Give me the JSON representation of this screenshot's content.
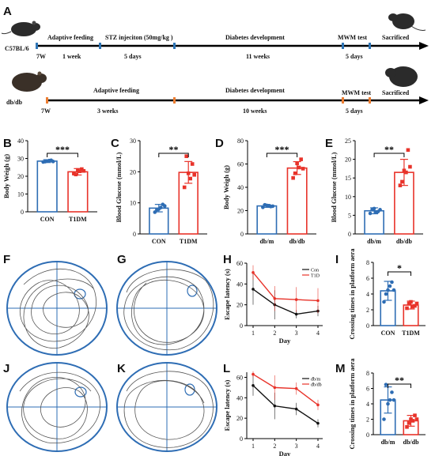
{
  "panels": {
    "A": {
      "letter": "A"
    },
    "B": {
      "letter": "B"
    },
    "C": {
      "letter": "C"
    },
    "D": {
      "letter": "D"
    },
    "E": {
      "letter": "E"
    },
    "F": {
      "letter": "F"
    },
    "G": {
      "letter": "G"
    },
    "H": {
      "letter": "H"
    },
    "I": {
      "letter": "I"
    },
    "J": {
      "letter": "J"
    },
    "K": {
      "letter": "K"
    },
    "L": {
      "letter": "L"
    },
    "M": {
      "letter": "M"
    }
  },
  "timeline": {
    "row1": {
      "strain": "C57BL/6",
      "week0": "7W",
      "steps": [
        "Adaptive feeding",
        "STZ injeciton (50mg/kg )",
        "Diabetes development",
        "MWM test",
        "Sacrificed"
      ],
      "durations": [
        "1 week",
        "5 days",
        "11 weeks",
        "5 days"
      ],
      "marker_color": "#2e75b6"
    },
    "row2": {
      "strain": "db/db",
      "week0": "7W",
      "steps": [
        "Adaptive feeding",
        "Diabetes development",
        "MWM test",
        "Sacrificed"
      ],
      "durations": [
        "3 weeks",
        "10 weeks",
        "5 days"
      ],
      "marker_color": "#ed7d31"
    }
  },
  "colors": {
    "blue": "#2e6db4",
    "red": "#e8332a",
    "black": "#111111"
  },
  "sig": {
    "B": "***",
    "C": "**",
    "D": "***",
    "E": "**",
    "I": "*",
    "M": "**"
  },
  "chart_data": [
    {
      "id": "B",
      "type": "bar",
      "categories": [
        "CON",
        "T1DM"
      ],
      "values": [
        28.5,
        22.5
      ],
      "errors": [
        0.8,
        1.8
      ],
      "points": [
        [
          28.0,
          28.5,
          29.0,
          28.2,
          28.8,
          28.3
        ],
        [
          21.5,
          23.5,
          24.0,
          21.0,
          22.8,
          23.0
        ]
      ],
      "ylabel": "Body Weigh (g)",
      "yticks": [
        0,
        10,
        20,
        30,
        40
      ],
      "ylim": [
        0,
        40
      ]
    },
    {
      "id": "C",
      "type": "bar",
      "categories": [
        "CON",
        "T1DM"
      ],
      "values": [
        8.3,
        19.8
      ],
      "errors": [
        1.2,
        3.5
      ],
      "points": [
        [
          7.0,
          8.0,
          9.5,
          7.8,
          8.5,
          9.0
        ],
        [
          15.0,
          19.5,
          22.5,
          25.0,
          17.8,
          19.0
        ]
      ],
      "ylabel": "Blood Glucose (mmol/L)",
      "yticks": [
        0,
        10,
        20,
        30
      ],
      "ylim": [
        0,
        30
      ]
    },
    {
      "id": "D",
      "type": "bar",
      "categories": [
        "db/m",
        "db/db"
      ],
      "values": [
        24.0,
        56.5
      ],
      "errors": [
        1.2,
        5.5
      ],
      "points": [
        [
          22.8,
          24.5,
          23.5,
          25.0,
          24.2,
          23.8
        ],
        [
          48.0,
          60.5,
          64.0,
          52.0,
          57.0,
          56.0
        ]
      ],
      "ylabel": "Body Weigh (g)",
      "yticks": [
        0,
        20,
        40,
        60,
        80
      ],
      "ylim": [
        0,
        80
      ]
    },
    {
      "id": "E",
      "type": "bar",
      "categories": [
        "db/m",
        "db/db"
      ],
      "values": [
        6.2,
        16.5
      ],
      "errors": [
        0.8,
        3.5
      ],
      "points": [
        [
          5.5,
          6.8,
          6.0,
          6.5,
          5.8,
          6.5
        ],
        [
          13.0,
          17.0,
          22.5,
          14.0,
          16.5,
          18.0
        ]
      ],
      "ylabel": "Blood Glucose (mmol/L)",
      "yticks": [
        0,
        5,
        10,
        15,
        20,
        25
      ],
      "ylim": [
        0,
        25
      ]
    },
    {
      "id": "H",
      "type": "line",
      "x": [
        1,
        2,
        3,
        4
      ],
      "xlabel": "Day",
      "ylabel": "Escape latency (s)",
      "yticks": [
        0,
        20,
        40,
        60
      ],
      "ylim": [
        0,
        60
      ],
      "series": [
        {
          "name": "Con",
          "values": [
            35,
            20,
            11,
            14
          ],
          "errors": [
            15,
            14,
            4,
            5
          ]
        },
        {
          "name": "T1D",
          "values": [
            51,
            26,
            25,
            24
          ],
          "errors": [
            7,
            12,
            12,
            12
          ]
        }
      ]
    },
    {
      "id": "I",
      "type": "bar",
      "categories": [
        "CON",
        "T1DM"
      ],
      "values": [
        4.4,
        2.6
      ],
      "errors": [
        1.2,
        0.5
      ],
      "points": [
        [
          3.0,
          4.5,
          5.5,
          4.0,
          5.0,
          4.5
        ],
        [
          2.2,
          3.0,
          2.5,
          2.8,
          2.4,
          2.8
        ]
      ],
      "ylabel": "Crossing times in platform aera",
      "yticks": [
        0,
        2,
        4,
        6,
        8
      ],
      "ylim": [
        0,
        8
      ]
    },
    {
      "id": "L",
      "type": "line",
      "x": [
        1,
        2,
        3,
        4
      ],
      "xlabel": "Day",
      "ylabel": "Escape latency (s)",
      "yticks": [
        0,
        20,
        40,
        60
      ],
      "ylim": [
        0,
        65
      ],
      "series": [
        {
          "name": "db/m",
          "values": [
            52,
            32,
            29,
            15
          ],
          "errors": [
            10,
            13,
            6,
            4
          ]
        },
        {
          "name": "db/db",
          "values": [
            63,
            50,
            49,
            33
          ],
          "errors": [
            3,
            12,
            6,
            5
          ]
        }
      ]
    },
    {
      "id": "M",
      "type": "bar",
      "categories": [
        "db/m",
        "db/db"
      ],
      "values": [
        4.5,
        1.8
      ],
      "errors": [
        1.7,
        0.7
      ],
      "points": [
        [
          2.0,
          4.0,
          5.5,
          6.5,
          4.5,
          4.5
        ],
        [
          1.0,
          2.0,
          2.5,
          1.5,
          1.8,
          2.0
        ]
      ],
      "ylabel": "Crossing times in platform aera",
      "yticks": [
        0,
        2,
        4,
        6,
        8
      ],
      "ylim": [
        0,
        8
      ]
    }
  ]
}
